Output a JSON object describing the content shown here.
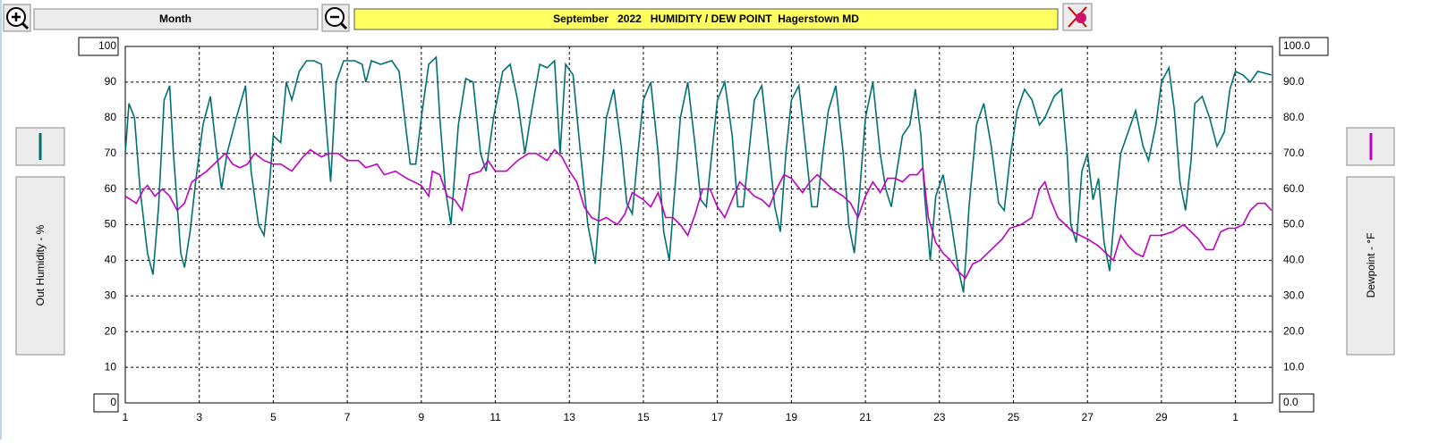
{
  "ui": {
    "period": "Month"
  },
  "chart_data": {
    "type": "line",
    "title": "September   2022   HUMIDITY / DEW POINT  Hagerstown MD",
    "ylabel": "Out Humidity - %",
    "y2label": "Dewpoint - °F",
    "xlim": [
      1,
      32
    ],
    "xticks": [
      1,
      3,
      5,
      7,
      9,
      11,
      13,
      15,
      17,
      19,
      21,
      23,
      25,
      27,
      29,
      {
        "value": 31,
        "label": "1"
      }
    ],
    "ylim": [
      0,
      100
    ],
    "yticks": [
      0,
      10,
      20,
      30,
      40,
      50,
      60,
      70,
      80,
      90,
      100
    ],
    "y2lim": [
      0,
      100
    ],
    "y2ticks": [
      {
        "value": 0,
        "label": "0.0"
      },
      {
        "value": 10,
        "label": "10.0"
      },
      {
        "value": 20,
        "label": "20.0"
      },
      {
        "value": 30,
        "label": "30.0"
      },
      {
        "value": 40,
        "label": "40.0"
      },
      {
        "value": 50,
        "label": "50.0"
      },
      {
        "value": 60,
        "label": "60.0"
      },
      {
        "value": 70,
        "label": "70.0"
      },
      {
        "value": 80,
        "label": "80.0"
      },
      {
        "value": 90,
        "label": "90.0"
      },
      {
        "value": 100,
        "label": "100.0"
      }
    ],
    "grid": true,
    "series": [
      {
        "name": "Out Humidity - %",
        "color": "#007070",
        "axis": "y",
        "x": [
          1.0,
          1.1,
          1.25,
          1.4,
          1.6,
          1.75,
          1.9,
          2.05,
          2.2,
          2.3,
          2.5,
          2.6,
          2.75,
          2.9,
          3.1,
          3.3,
          3.45,
          3.6,
          3.75,
          4.0,
          4.25,
          4.4,
          4.6,
          4.75,
          4.9,
          5.0,
          5.2,
          5.35,
          5.5,
          5.7,
          5.9,
          6.1,
          6.3,
          6.45,
          6.55,
          6.7,
          6.9,
          7.2,
          7.4,
          7.5,
          7.65,
          7.9,
          8.2,
          8.4,
          8.55,
          8.7,
          8.85,
          9.0,
          9.2,
          9.4,
          9.5,
          9.65,
          9.8,
          10.0,
          10.2,
          10.4,
          10.6,
          10.75,
          10.95,
          11.2,
          11.4,
          11.6,
          11.8,
          11.95,
          12.2,
          12.4,
          12.6,
          12.75,
          12.9,
          13.1,
          13.3,
          13.5,
          13.7,
          13.85,
          14.0,
          14.2,
          14.4,
          14.55,
          14.7,
          14.85,
          15.0,
          15.2,
          15.4,
          15.55,
          15.7,
          15.85,
          16.0,
          16.2,
          16.4,
          16.55,
          16.7,
          16.85,
          17.0,
          17.2,
          17.4,
          17.55,
          17.7,
          17.85,
          18.0,
          18.2,
          18.4,
          18.55,
          18.7,
          18.85,
          19.0,
          19.2,
          19.4,
          19.55,
          19.7,
          19.85,
          20.0,
          20.2,
          20.4,
          20.55,
          20.7,
          20.85,
          21.0,
          21.2,
          21.4,
          21.55,
          21.7,
          21.85,
          22.0,
          22.2,
          22.35,
          22.5,
          22.6,
          22.75,
          22.9,
          23.1,
          23.3,
          23.5,
          23.65,
          23.8,
          24.0,
          24.2,
          24.4,
          24.6,
          24.75,
          24.9,
          25.1,
          25.3,
          25.5,
          25.7,
          25.85,
          26.1,
          26.3,
          26.45,
          26.55,
          26.7,
          26.85,
          27.0,
          27.15,
          27.3,
          27.45,
          27.6,
          27.75,
          27.9,
          28.1,
          28.3,
          28.5,
          28.65,
          28.85,
          29.0,
          29.2,
          29.35,
          29.5,
          29.65,
          29.8,
          29.9,
          30.1,
          30.3,
          30.5,
          30.7,
          30.85,
          31.0,
          31.2,
          31.4,
          31.6,
          31.97
        ],
        "values": [
          70,
          84,
          80,
          60,
          42,
          36,
          55,
          85,
          89,
          70,
          42,
          38,
          48,
          62,
          78,
          86,
          72,
          60,
          70,
          80,
          89,
          65,
          50,
          47,
          62,
          75,
          73,
          90,
          85,
          93,
          96,
          96,
          95,
          75,
          62,
          90,
          96,
          96,
          95,
          90,
          96,
          95,
          96,
          93,
          80,
          67,
          67,
          80,
          95,
          97,
          80,
          60,
          50,
          78,
          91,
          90,
          70,
          65,
          80,
          93,
          95,
          85,
          70,
          80,
          95,
          94,
          96,
          70,
          95,
          92,
          70,
          50,
          39,
          60,
          80,
          88,
          72,
          56,
          53,
          70,
          85,
          90,
          70,
          48,
          40,
          60,
          80,
          90,
          72,
          57,
          55,
          70,
          85,
          90,
          75,
          55,
          55,
          70,
          85,
          89,
          70,
          55,
          48,
          70,
          85,
          89,
          70,
          55,
          55,
          70,
          82,
          89,
          70,
          50,
          42,
          60,
          80,
          90,
          70,
          60,
          55,
          65,
          75,
          78,
          88,
          75,
          58,
          40,
          58,
          64,
          52,
          38,
          31,
          55,
          78,
          84,
          72,
          56,
          54,
          68,
          82,
          88,
          85,
          78,
          80,
          86,
          88,
          70,
          50,
          45,
          65,
          70,
          57,
          63,
          45,
          37,
          55,
          70,
          76,
          82,
          72,
          68,
          78,
          90,
          94,
          82,
          62,
          54,
          68,
          84,
          86,
          80,
          72,
          76,
          88,
          93,
          92,
          90,
          93,
          92
        ]
      },
      {
        "name": "Dewpoint - °F",
        "color": "#c000c0",
        "axis": "y2",
        "x": [
          1.0,
          1.3,
          1.5,
          1.6,
          1.8,
          2.0,
          2.2,
          2.4,
          2.6,
          2.8,
          3.2,
          3.5,
          3.7,
          3.9,
          4.1,
          4.3,
          4.5,
          4.75,
          5.0,
          5.2,
          5.5,
          5.8,
          6.0,
          6.3,
          6.5,
          6.75,
          7.0,
          7.3,
          7.5,
          7.8,
          8.0,
          8.3,
          8.6,
          9.0,
          9.2,
          9.3,
          9.5,
          9.7,
          9.9,
          10.1,
          10.3,
          10.6,
          10.8,
          11.0,
          11.3,
          11.6,
          11.9,
          12.1,
          12.4,
          12.6,
          12.8,
          13.0,
          13.2,
          13.4,
          13.6,
          13.8,
          14.0,
          14.3,
          14.5,
          14.7,
          15.0,
          15.2,
          15.4,
          15.6,
          15.8,
          16.0,
          16.2,
          16.4,
          16.6,
          16.8,
          17.0,
          17.2,
          17.4,
          17.6,
          17.8,
          18.0,
          18.2,
          18.4,
          18.6,
          18.8,
          19.0,
          19.3,
          19.5,
          19.7,
          19.9,
          20.1,
          20.4,
          20.6,
          20.8,
          21.0,
          21.2,
          21.4,
          21.6,
          21.8,
          22.0,
          22.2,
          22.4,
          22.55,
          22.7,
          22.9,
          23.1,
          23.3,
          23.5,
          23.7,
          23.9,
          24.1,
          24.4,
          24.7,
          24.9,
          25.2,
          25.5,
          25.7,
          25.85,
          26.0,
          26.2,
          26.4,
          26.6,
          26.8,
          27.0,
          27.3,
          27.5,
          27.7,
          27.9,
          28.1,
          28.3,
          28.5,
          28.7,
          29.0,
          29.3,
          29.6,
          29.8,
          30.0,
          30.2,
          30.4,
          30.6,
          30.8,
          31.0,
          31.2,
          31.4,
          31.6,
          31.8,
          31.97
        ],
        "values": [
          58,
          56,
          60,
          61,
          58,
          60,
          58,
          54,
          56,
          62,
          65,
          68,
          70,
          67,
          66,
          67,
          70,
          68,
          67,
          67,
          65,
          69,
          71,
          69,
          70,
          70,
          68,
          68,
          66,
          67,
          64,
          65,
          63,
          61,
          58,
          65,
          64,
          58,
          57,
          54,
          64,
          65,
          68,
          65,
          65,
          68,
          70,
          70,
          68,
          71,
          69,
          65,
          62,
          55,
          52,
          51,
          52,
          50,
          53,
          59,
          57,
          55,
          59,
          52,
          52,
          50,
          47,
          53,
          60,
          60,
          55,
          52,
          57,
          62,
          60,
          58,
          57,
          55,
          60,
          64,
          63,
          59,
          62,
          64,
          62,
          60,
          58,
          56,
          52,
          58,
          62,
          59,
          63,
          63,
          62,
          64,
          64,
          66,
          52,
          45,
          42,
          40,
          37,
          35,
          39,
          40,
          43,
          46,
          49,
          50,
          52,
          60,
          62,
          57,
          52,
          50,
          48,
          47,
          46,
          44,
          42,
          40,
          47,
          44,
          42,
          41,
          47,
          47,
          48,
          50,
          48,
          46,
          43,
          43,
          48,
          49,
          49,
          50,
          54,
          56,
          56,
          54
        ]
      }
    ]
  }
}
